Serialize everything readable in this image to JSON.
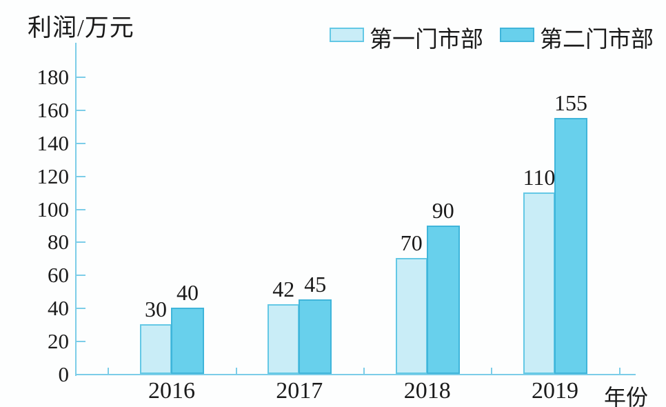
{
  "title": "利润/万元",
  "xaxis_label": "年份",
  "chart_data": {
    "type": "bar",
    "title": "利润/万元",
    "xlabel": "年份",
    "ylabel": "利润/万元",
    "categories": [
      "2016",
      "2017",
      "2018",
      "2019"
    ],
    "series": [
      {
        "name": "第一门市部",
        "values": [
          30,
          42,
          70,
          110
        ],
        "color": "#c9edf7",
        "border_color": "#63c8e5"
      },
      {
        "name": "第二门市部",
        "values": [
          40,
          45,
          90,
          155
        ],
        "color": "#68d0ec",
        "border_color": "#3fb5da"
      }
    ],
    "ylim": [
      0,
      180
    ],
    "yticks": [
      0,
      20,
      40,
      60,
      80,
      100,
      120,
      140,
      160,
      180
    ],
    "grid": false,
    "legend_position": "top",
    "bar_labels": true,
    "axis_color": "#7ccde8",
    "text_color": "#1a1a1a"
  }
}
